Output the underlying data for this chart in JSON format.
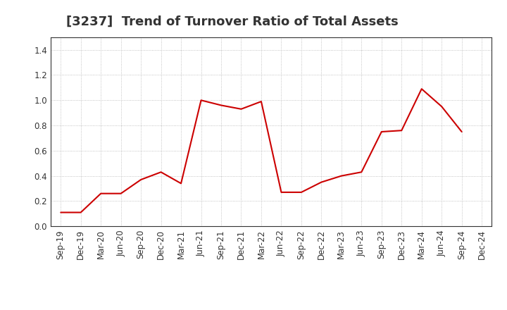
{
  "title": "[3237]  Trend of Turnover Ratio of Total Assets",
  "x_labels": [
    "Sep-19",
    "Dec-19",
    "Mar-20",
    "Jun-20",
    "Sep-20",
    "Dec-20",
    "Mar-21",
    "Jun-21",
    "Sep-21",
    "Dec-21",
    "Mar-22",
    "Jun-22",
    "Sep-22",
    "Dec-22",
    "Mar-23",
    "Jun-23",
    "Sep-23",
    "Dec-23",
    "Mar-24",
    "Jun-24",
    "Sep-24",
    "Dec-24"
  ],
  "y_values": [
    0.11,
    0.11,
    0.26,
    0.26,
    0.37,
    0.43,
    0.34,
    1.0,
    0.96,
    0.93,
    0.99,
    0.27,
    0.27,
    0.35,
    0.4,
    0.43,
    0.75,
    0.76,
    1.09,
    0.95,
    0.75,
    null
  ],
  "line_color": "#cc0000",
  "line_width": 1.5,
  "ylim": [
    0.0,
    1.5
  ],
  "yticks": [
    0.0,
    0.2,
    0.4,
    0.6,
    0.8,
    1.0,
    1.2,
    1.4
  ],
  "grid_color": "#aaaaaa",
  "background_color": "#ffffff",
  "title_fontsize": 13,
  "tick_fontsize": 8.5
}
